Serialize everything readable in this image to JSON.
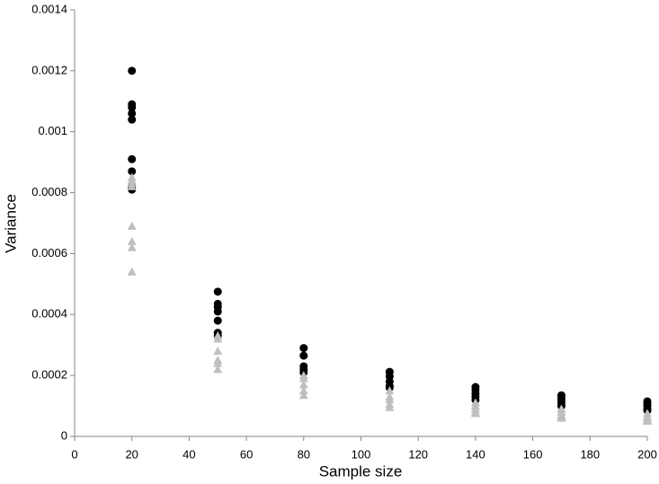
{
  "chart_data": {
    "type": "scatter",
    "x_label": "Sample size",
    "y_label": "Variance",
    "xlim": [
      0,
      200
    ],
    "xticks": [
      0,
      20,
      40,
      60,
      80,
      100,
      120,
      140,
      160,
      180,
      200
    ],
    "ylim": [
      0,
      0.0014
    ],
    "yticks": [
      0,
      0.0002,
      0.0004,
      0.0006,
      0.0008,
      0.001,
      0.0012,
      0.0014
    ],
    "series": [
      {
        "color": "#000000",
        "marker": "circle",
        "x": [
          20,
          20,
          20,
          20,
          20,
          20,
          20,
          20,
          20,
          50,
          50,
          50,
          50,
          50,
          50,
          50,
          80,
          80,
          80,
          80,
          80,
          110,
          110,
          110,
          110,
          110,
          140,
          140,
          140,
          140,
          140,
          170,
          170,
          170,
          170,
          170,
          200,
          200,
          200,
          200,
          200
        ],
        "values": [
          0.0012,
          0.00109,
          0.00108,
          0.00106,
          0.00104,
          0.00091,
          0.00087,
          0.00082,
          0.00081,
          0.000475,
          0.000435,
          0.000425,
          0.00041,
          0.00038,
          0.00034,
          0.00033,
          0.00029,
          0.000265,
          0.00023,
          0.00022,
          0.00021,
          0.000212,
          0.000197,
          0.00018,
          0.000165,
          0.00016,
          0.000162,
          0.000152,
          0.00014,
          0.00013,
          0.00012,
          0.000135,
          0.000127,
          0.00012,
          0.00011,
          0.0001,
          0.000115,
          0.000108,
          0.0001,
          9e-05,
          8.5e-05
        ]
      },
      {
        "color": "#bfbfbf",
        "marker": "triangle",
        "x": [
          20,
          20,
          20,
          20,
          20,
          20,
          20,
          20,
          50,
          50,
          50,
          50,
          50,
          50,
          80,
          80,
          80,
          80,
          80,
          110,
          110,
          110,
          110,
          110,
          140,
          140,
          140,
          140,
          140,
          170,
          170,
          170,
          170,
          170,
          200,
          200,
          200,
          200,
          200
        ],
        "values": [
          0.00085,
          0.00084,
          0.00083,
          0.00082,
          0.00069,
          0.00064,
          0.00062,
          0.00054,
          0.00033,
          0.00032,
          0.00028,
          0.00025,
          0.00024,
          0.00022,
          0.0002,
          0.00019,
          0.00017,
          0.00015,
          0.000135,
          0.00015,
          0.00013,
          0.00012,
          0.000105,
          9.5e-05,
          0.00011,
          0.0001,
          9e-05,
          8e-05,
          7.5e-05,
          9e-05,
          8e-05,
          7e-05,
          6.5e-05,
          6e-05,
          7.5e-05,
          6.5e-05,
          6e-05,
          5.5e-05,
          5e-05
        ]
      }
    ]
  }
}
